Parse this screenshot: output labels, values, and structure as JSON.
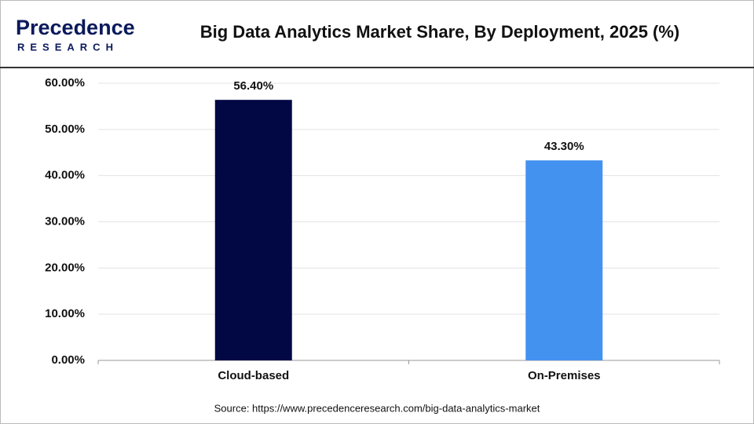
{
  "brand": {
    "name": "Precedence",
    "tagline": "RESEARCH"
  },
  "chart_data": {
    "type": "bar",
    "title": "Big Data Analytics Market Share, By Deployment, 2025 (%)",
    "source": "Source: https://www.precedenceresearch.com/big-data-analytics-market",
    "categories": [
      "Cloud-based",
      "On-Premises"
    ],
    "values": [
      56.4,
      43.3
    ],
    "value_labels": [
      "56.40%",
      "43.30%"
    ],
    "colors": [
      "#020843",
      "#4492ef"
    ],
    "ylim": [
      0,
      60
    ],
    "yticks": [
      {
        "value": 0,
        "label": "0.00%"
      },
      {
        "value": 10,
        "label": "10.00%"
      },
      {
        "value": 20,
        "label": "20.00%"
      },
      {
        "value": 30,
        "label": "30.00%"
      },
      {
        "value": 40,
        "label": "40.00%"
      },
      {
        "value": 50,
        "label": "50.00%"
      },
      {
        "value": 60,
        "label": "60.00%"
      }
    ],
    "grid": true
  }
}
